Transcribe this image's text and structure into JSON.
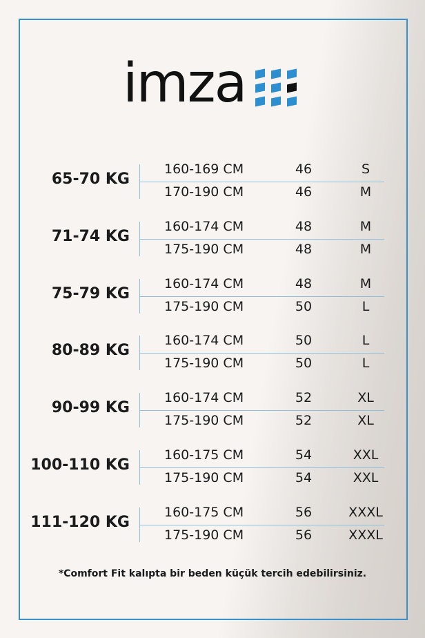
{
  "brand": {
    "name": "imza",
    "accent": "#2d8fcf",
    "frame_color": "#3a90c8"
  },
  "groups": [
    {
      "weight": "65-70 KG",
      "rows": [
        {
          "cm": "160-169 CM",
          "num": "46",
          "size": "S"
        },
        {
          "cm": "170-190 CM",
          "num": "46",
          "size": "M"
        }
      ]
    },
    {
      "weight": "71-74 KG",
      "rows": [
        {
          "cm": "160-174 CM",
          "num": "48",
          "size": "M"
        },
        {
          "cm": "175-190 CM",
          "num": "48",
          "size": "M"
        }
      ]
    },
    {
      "weight": "75-79 KG",
      "rows": [
        {
          "cm": "160-174 CM",
          "num": "48",
          "size": "M"
        },
        {
          "cm": "175-190 CM",
          "num": "50",
          "size": "L"
        }
      ]
    },
    {
      "weight": "80-89 KG",
      "rows": [
        {
          "cm": "160-174 CM",
          "num": "50",
          "size": "L"
        },
        {
          "cm": "175-190 CM",
          "num": "50",
          "size": "L"
        }
      ]
    },
    {
      "weight": "90-99 KG",
      "rows": [
        {
          "cm": "160-174 CM",
          "num": "52",
          "size": "XL"
        },
        {
          "cm": "175-190 CM",
          "num": "52",
          "size": "XL"
        }
      ]
    },
    {
      "weight": "100-110 KG",
      "rows": [
        {
          "cm": "160-175 CM",
          "num": "54",
          "size": "XXL"
        },
        {
          "cm": "175-190 CM",
          "num": "54",
          "size": "XXL"
        }
      ]
    },
    {
      "weight": "111-120 KG",
      "rows": [
        {
          "cm": "160-175 CM",
          "num": "56",
          "size": "XXXL"
        },
        {
          "cm": "175-190 CM",
          "num": "56",
          "size": "XXXL"
        }
      ]
    }
  ],
  "note": "*Comfort Fit kalıpta bir beden küçük tercih edebilirsiniz."
}
